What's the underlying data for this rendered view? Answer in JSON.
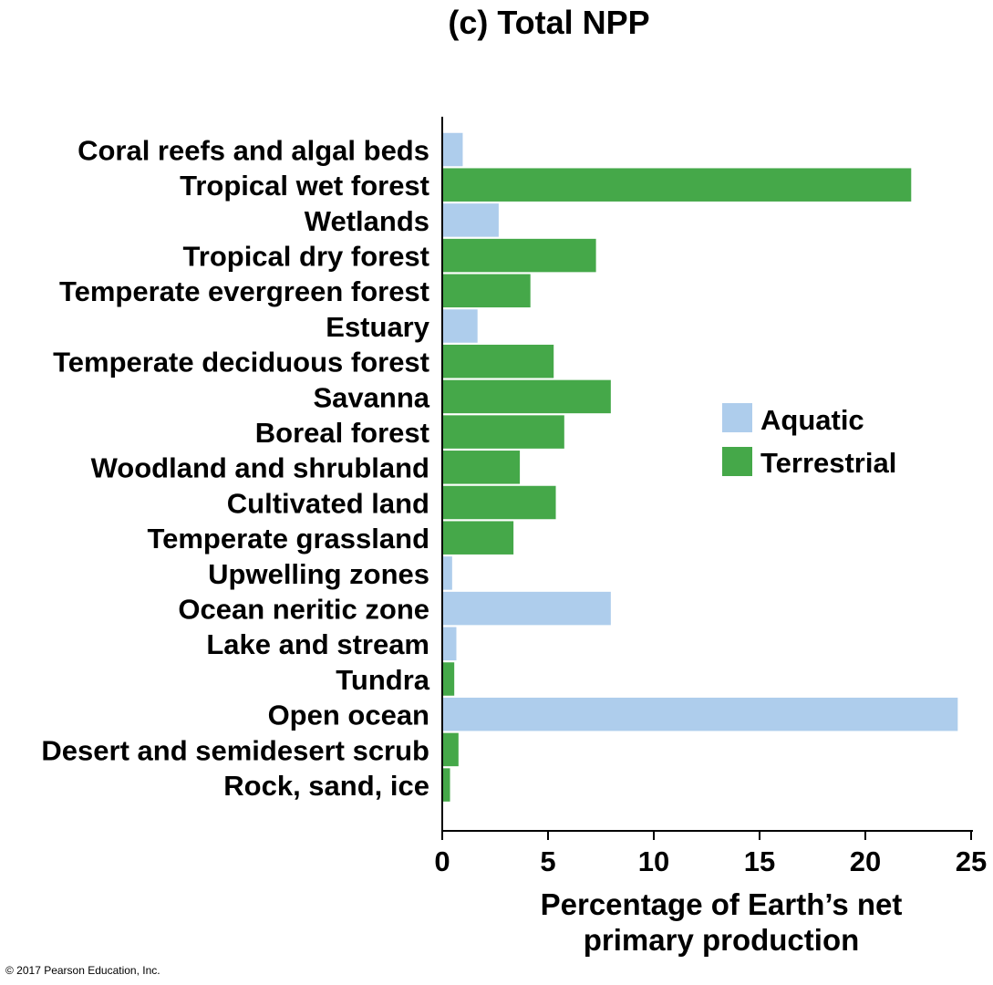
{
  "chart_data": {
    "type": "bar",
    "orientation": "horizontal",
    "title": "(c) Total NPP",
    "xlabel": [
      "Percentage of Earth’s net",
      "primary production"
    ],
    "ylabel": "",
    "xlim": [
      0,
      25
    ],
    "xticks": [
      "0",
      "5",
      "10",
      "15",
      "20",
      "25"
    ],
    "grid": false,
    "legend_placement": "right",
    "colors": {
      "aquatic": "#aecdec",
      "terrestrial": "#45a849"
    },
    "legend": [
      {
        "name": "Aquatic",
        "type": "aquatic"
      },
      {
        "name": "Terrestrial",
        "type": "terrestrial"
      }
    ],
    "categories": [
      "Coral reefs and algal beds",
      "Tropical wet forest",
      "Wetlands",
      "Tropical dry forest",
      "Temperate evergreen forest",
      "Estuary",
      "Temperate deciduous forest",
      "Savanna",
      "Boreal forest",
      "Woodland and shrubland",
      "Cultivated land",
      "Temperate grassland",
      "Upwelling zones",
      "Ocean neritic zone",
      "Lake and stream",
      "Tundra",
      "Open ocean",
      "Desert and semidesert scrub",
      "Rock, sand, ice"
    ],
    "values": [
      1.0,
      22.2,
      2.7,
      7.3,
      4.2,
      1.7,
      5.3,
      8.0,
      5.8,
      3.7,
      5.4,
      3.4,
      0.5,
      8.0,
      0.7,
      0.6,
      24.4,
      0.8,
      0.4
    ],
    "types": [
      "aquatic",
      "terrestrial",
      "aquatic",
      "terrestrial",
      "terrestrial",
      "aquatic",
      "terrestrial",
      "terrestrial",
      "terrestrial",
      "terrestrial",
      "terrestrial",
      "terrestrial",
      "aquatic",
      "aquatic",
      "aquatic",
      "terrestrial",
      "aquatic",
      "terrestrial",
      "terrestrial"
    ]
  },
  "copyright": "© 2017 Pearson Education, Inc."
}
